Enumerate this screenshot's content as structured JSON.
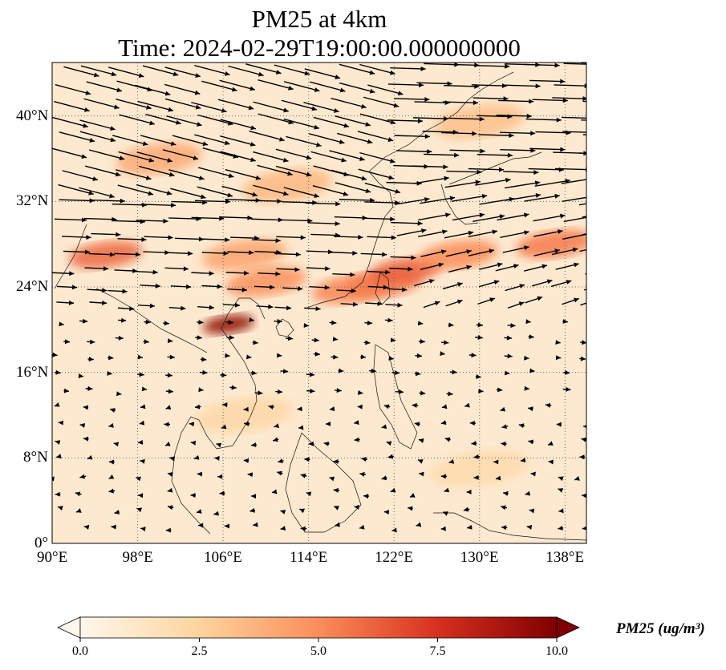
{
  "title": {
    "line1": "PM25 at 4km",
    "line2": "Time: 2024-02-29T19:00:00.000000000"
  },
  "map": {
    "lon_range": [
      90,
      140
    ],
    "lat_range": [
      0,
      45
    ],
    "x_ticks": [
      "90°E",
      "98°E",
      "106°E",
      "114°E",
      "122°E",
      "130°E",
      "138°E"
    ],
    "y_ticks": [
      "0°",
      "8°N",
      "16°N",
      "24°N",
      "32°N",
      "40°N"
    ],
    "gridlines": true,
    "coastlines": true,
    "colormap": "OrRd",
    "plumes": [
      {
        "lon": 95,
        "lat": 27,
        "value": 6.0
      },
      {
        "lon": 100,
        "lat": 36,
        "value": 4.0
      },
      {
        "lon": 108,
        "lat": 27,
        "value": 4.2
      },
      {
        "lon": 110,
        "lat": 24.5,
        "value": 4.8
      },
      {
        "lon": 106.5,
        "lat": 20.5,
        "value": 9.5
      },
      {
        "lon": 112,
        "lat": 33.5,
        "value": 3.5
      },
      {
        "lon": 118,
        "lat": 23.8,
        "value": 5.2
      },
      {
        "lon": 121,
        "lat": 24.3,
        "value": 5.5
      },
      {
        "lon": 123,
        "lat": 25.5,
        "value": 6.2
      },
      {
        "lon": 128,
        "lat": 27,
        "value": 5.0
      },
      {
        "lon": 137,
        "lat": 28,
        "value": 5.5
      },
      {
        "lon": 130,
        "lat": 39.5,
        "value": 3.2
      },
      {
        "lon": 108,
        "lat": 12,
        "value": 2.2
      },
      {
        "lon": 130,
        "lat": 7,
        "value": 2.0
      }
    ],
    "wind_vectors": "flow field: westerlies north of 20°N, weak easterlies to the south"
  },
  "colorbar": {
    "min": 0.0,
    "max": 10.0,
    "ticks": [
      "0.0",
      "2.5",
      "5.0",
      "7.5",
      "10.0"
    ],
    "label": "PM25 (ug/m³)",
    "colors": [
      "#fff7ec",
      "#fdd49e",
      "#fc8d59",
      "#d7301f",
      "#7f0000"
    ]
  }
}
